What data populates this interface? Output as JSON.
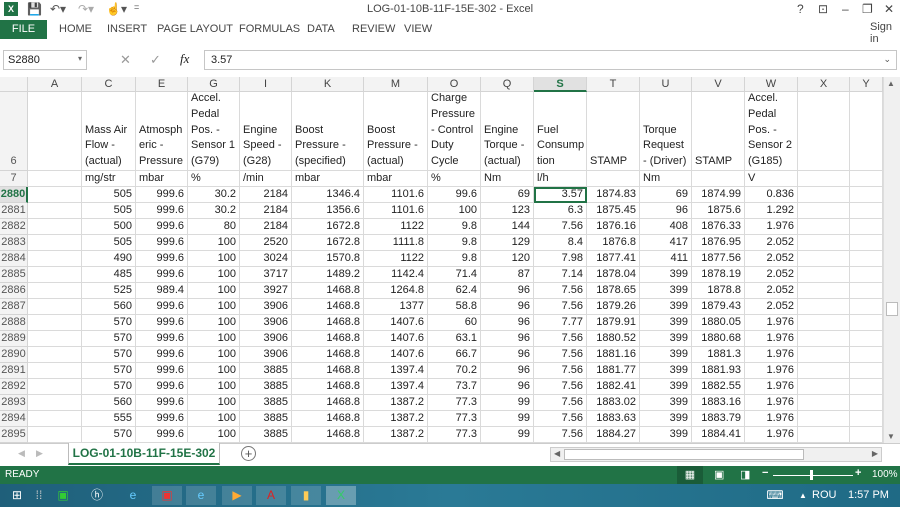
{
  "window": {
    "title": "LOG-01-10B-11F-15E-302 - Excel",
    "help": "?",
    "sign_in": "Sign in"
  },
  "ribbon": {
    "tabs": [
      "FILE",
      "HOME",
      "INSERT",
      "PAGE LAYOUT",
      "FORMULAS",
      "DATA",
      "REVIEW",
      "VIEW"
    ]
  },
  "formula_bar": {
    "name_box": "S2880",
    "value": "3.57",
    "fx": "fx"
  },
  "columns": [
    "A",
    "C",
    "E",
    "G",
    "I",
    "K",
    "M",
    "O",
    "Q",
    "S",
    "T",
    "U",
    "V",
    "W",
    "X",
    "Y"
  ],
  "selected_column": "S",
  "header_rows": {
    "row6_label": "6",
    "row7_label": "7",
    "titles": [
      "",
      "Mass Air Flow - (actual)",
      "Atmosph eric - Pressure",
      "Accel. Pedal Pos. - Sensor 1 (G79)",
      "Engine Speed - (G28)",
      "Boost Pressure - (specified)",
      "Boost Pressure - (actual)",
      "Charge Pressure - Control Duty Cycle",
      "Engine Torque - (actual)",
      "Fuel Consump tion",
      "STAMP",
      "Torque Request - (Driver)",
      "STAMP",
      "Accel. Pedal Pos. - Sensor 2 (G185)",
      "",
      ""
    ],
    "units": [
      "",
      "mg/str",
      "mbar",
      "%",
      "/min",
      "mbar",
      "mbar",
      "%",
      "Nm",
      "l/h",
      "",
      "Nm",
      "",
      "V",
      "",
      ""
    ]
  },
  "rows": [
    {
      "n": "2880",
      "v": [
        "",
        "505",
        "999.6",
        "30.2",
        "2184",
        "1346.4",
        "1101.6",
        "99.6",
        "69",
        "3.57",
        "1874.83",
        "69",
        "1874.99",
        "0.836",
        "",
        ""
      ]
    },
    {
      "n": "2881",
      "v": [
        "",
        "505",
        "999.6",
        "30.2",
        "2184",
        "1356.6",
        "1101.6",
        "100",
        "123",
        "6.3",
        "1875.45",
        "96",
        "1875.6",
        "1.292",
        "",
        ""
      ]
    },
    {
      "n": "2882",
      "v": [
        "",
        "500",
        "999.6",
        "80",
        "2184",
        "1672.8",
        "1122",
        "9.8",
        "144",
        "7.56",
        "1876.16",
        "408",
        "1876.33",
        "1.976",
        "",
        ""
      ]
    },
    {
      "n": "2883",
      "v": [
        "",
        "505",
        "999.6",
        "100",
        "2520",
        "1672.8",
        "1111.8",
        "9.8",
        "129",
        "8.4",
        "1876.8",
        "417",
        "1876.95",
        "2.052",
        "",
        ""
      ]
    },
    {
      "n": "2884",
      "v": [
        "",
        "490",
        "999.6",
        "100",
        "3024",
        "1570.8",
        "1122",
        "9.8",
        "120",
        "7.98",
        "1877.41",
        "411",
        "1877.56",
        "2.052",
        "",
        ""
      ]
    },
    {
      "n": "2885",
      "v": [
        "",
        "485",
        "999.6",
        "100",
        "3717",
        "1489.2",
        "1142.4",
        "71.4",
        "87",
        "7.14",
        "1878.04",
        "399",
        "1878.19",
        "2.052",
        "",
        ""
      ]
    },
    {
      "n": "2886",
      "v": [
        "",
        "525",
        "989.4",
        "100",
        "3927",
        "1468.8",
        "1264.8",
        "62.4",
        "96",
        "7.56",
        "1878.65",
        "399",
        "1878.8",
        "2.052",
        "",
        ""
      ]
    },
    {
      "n": "2887",
      "v": [
        "",
        "560",
        "999.6",
        "100",
        "3906",
        "1468.8",
        "1377",
        "58.8",
        "96",
        "7.56",
        "1879.26",
        "399",
        "1879.43",
        "2.052",
        "",
        ""
      ]
    },
    {
      "n": "2888",
      "v": [
        "",
        "570",
        "999.6",
        "100",
        "3906",
        "1468.8",
        "1407.6",
        "60",
        "96",
        "7.77",
        "1879.91",
        "399",
        "1880.05",
        "1.976",
        "",
        ""
      ]
    },
    {
      "n": "2889",
      "v": [
        "",
        "570",
        "999.6",
        "100",
        "3906",
        "1468.8",
        "1407.6",
        "63.1",
        "96",
        "7.56",
        "1880.52",
        "399",
        "1880.68",
        "1.976",
        "",
        ""
      ]
    },
    {
      "n": "2890",
      "v": [
        "",
        "570",
        "999.6",
        "100",
        "3906",
        "1468.8",
        "1407.6",
        "66.7",
        "96",
        "7.56",
        "1881.16",
        "399",
        "1881.3",
        "1.976",
        "",
        ""
      ]
    },
    {
      "n": "2891",
      "v": [
        "",
        "570",
        "999.6",
        "100",
        "3885",
        "1468.8",
        "1397.4",
        "70.2",
        "96",
        "7.56",
        "1881.77",
        "399",
        "1881.93",
        "1.976",
        "",
        ""
      ]
    },
    {
      "n": "2892",
      "v": [
        "",
        "570",
        "999.6",
        "100",
        "3885",
        "1468.8",
        "1397.4",
        "73.7",
        "96",
        "7.56",
        "1882.41",
        "399",
        "1882.55",
        "1.976",
        "",
        ""
      ]
    },
    {
      "n": "2893",
      "v": [
        "",
        "560",
        "999.6",
        "100",
        "3885",
        "1468.8",
        "1387.2",
        "77.3",
        "99",
        "7.56",
        "1883.02",
        "399",
        "1883.16",
        "1.976",
        "",
        ""
      ]
    },
    {
      "n": "2894",
      "v": [
        "",
        "555",
        "999.6",
        "100",
        "3885",
        "1468.8",
        "1387.2",
        "77.3",
        "99",
        "7.56",
        "1883.63",
        "399",
        "1883.79",
        "1.976",
        "",
        ""
      ]
    },
    {
      "n": "2895",
      "v": [
        "",
        "570",
        "999.6",
        "100",
        "3885",
        "1468.8",
        "1387.2",
        "77.3",
        "99",
        "7.56",
        "1884.27",
        "399",
        "1884.41",
        "1.976",
        "",
        ""
      ]
    }
  ],
  "sheet_tab": "LOG-01-10B-11F-15E-302",
  "status": {
    "text": "READY",
    "zoom": "100%",
    "zoom_level_percent": 100
  },
  "taskbar": {
    "language": "ROU",
    "time": "1:57 PM"
  },
  "colors": {
    "accent": "#217346"
  }
}
